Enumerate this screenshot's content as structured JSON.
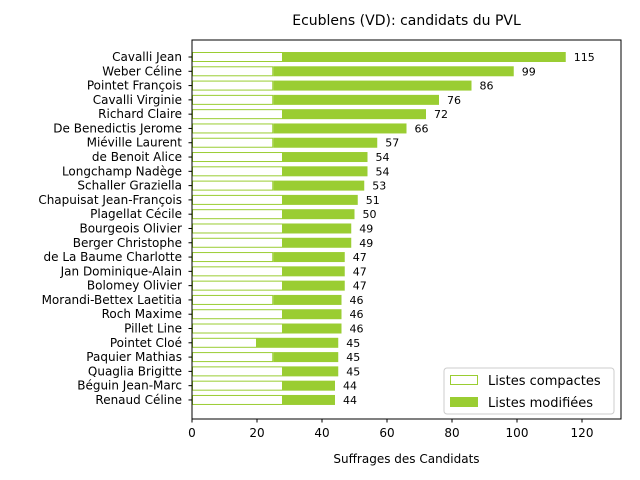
{
  "chart_data": {
    "type": "bar",
    "orientation": "horizontal",
    "stacked": true,
    "title": "Ecublens (VD): candidats du PVL",
    "xlabel": "Suffrages des Candidats",
    "ylabel": "",
    "xlim": [
      0,
      132
    ],
    "xticks": [
      0,
      20,
      40,
      60,
      80,
      100,
      120
    ],
    "legend_position": "bottom-right",
    "grid": false,
    "colors": {
      "compactes_edge": "#9acd32",
      "compactes_fill": "#ffffff",
      "modifiees": "#9acd32"
    },
    "categories": [
      "Cavalli Jean",
      "Weber Céline",
      "Pointet François",
      "Cavalli Virginie",
      "Richard Claire",
      "De Benedictis Jerome",
      "Miéville Laurent",
      "de Benoit Alice",
      "Longchamp Nadège",
      "Schaller Graziella",
      "Chapuisat Jean-François",
      "Plagellat Cécile",
      "Bourgeois Olivier",
      "Berger Christophe",
      "de La Baume Charlotte",
      "Jan Dominique-Alain",
      "Bolomey Olivier",
      "Morandi-Bettex Laetitia",
      "Roch Maxime",
      "Pillet Line",
      "Pointet Cloé",
      "Paquier Mathias",
      "Quaglia Brigitte",
      "Béguin Jean-Marc",
      "Renaud Céline"
    ],
    "series": [
      {
        "name": "Listes compactes",
        "values": [
          28,
          25,
          25,
          25,
          28,
          25,
          25,
          28,
          28,
          25,
          28,
          28,
          28,
          28,
          25,
          28,
          28,
          25,
          28,
          28,
          20,
          25,
          28,
          28,
          28
        ]
      },
      {
        "name": "Listes modifiées",
        "values": [
          87,
          74,
          61,
          51,
          44,
          41,
          32,
          26,
          26,
          28,
          23,
          22,
          21,
          21,
          22,
          19,
          19,
          21,
          18,
          18,
          25,
          20,
          17,
          16,
          16
        ]
      }
    ],
    "totals": [
      115,
      99,
      86,
      76,
      72,
      66,
      57,
      54,
      54,
      53,
      51,
      50,
      49,
      49,
      47,
      47,
      47,
      46,
      46,
      46,
      45,
      45,
      45,
      44,
      44
    ]
  }
}
